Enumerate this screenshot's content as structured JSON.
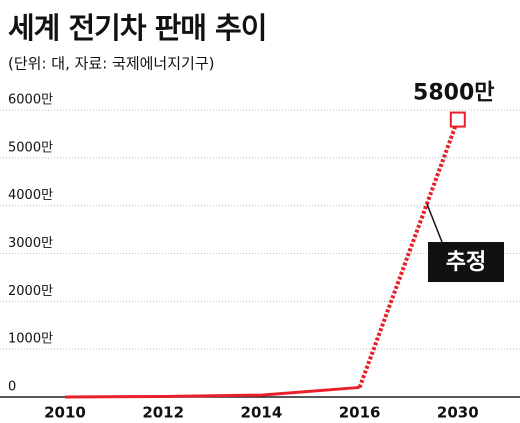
{
  "chart_data": {
    "type": "line",
    "title": "세계 전기차 판매 추이",
    "subtitle": "(단위: 대, 자료: 국제에너지기구)",
    "categories": [
      "2010",
      "2012",
      "2014",
      "2016",
      "2030"
    ],
    "series": [
      {
        "color": "#e8202a",
        "values": [
          1,
          10,
          40,
          200,
          null
        ]
      },
      {
        "name": "추정",
        "color": "#e8202a",
        "dashed": true,
        "values": [
          null,
          null,
          null,
          200,
          5800
        ],
        "value_labels": [
          null,
          null,
          null,
          null,
          "5800만"
        ]
      }
    ],
    "ylim": [
      0,
      6000
    ],
    "yticks": [
      0,
      {
        "value": 1000,
        "label": "1000만"
      },
      {
        "value": 2000,
        "label": "2000만"
      },
      {
        "value": 3000,
        "label": "3000만"
      },
      {
        "value": 4000,
        "label": "4000만"
      },
      {
        "value": 5000,
        "label": "5000만"
      },
      {
        "value": 6000,
        "label": "6000만"
      }
    ],
    "grid": true
  }
}
